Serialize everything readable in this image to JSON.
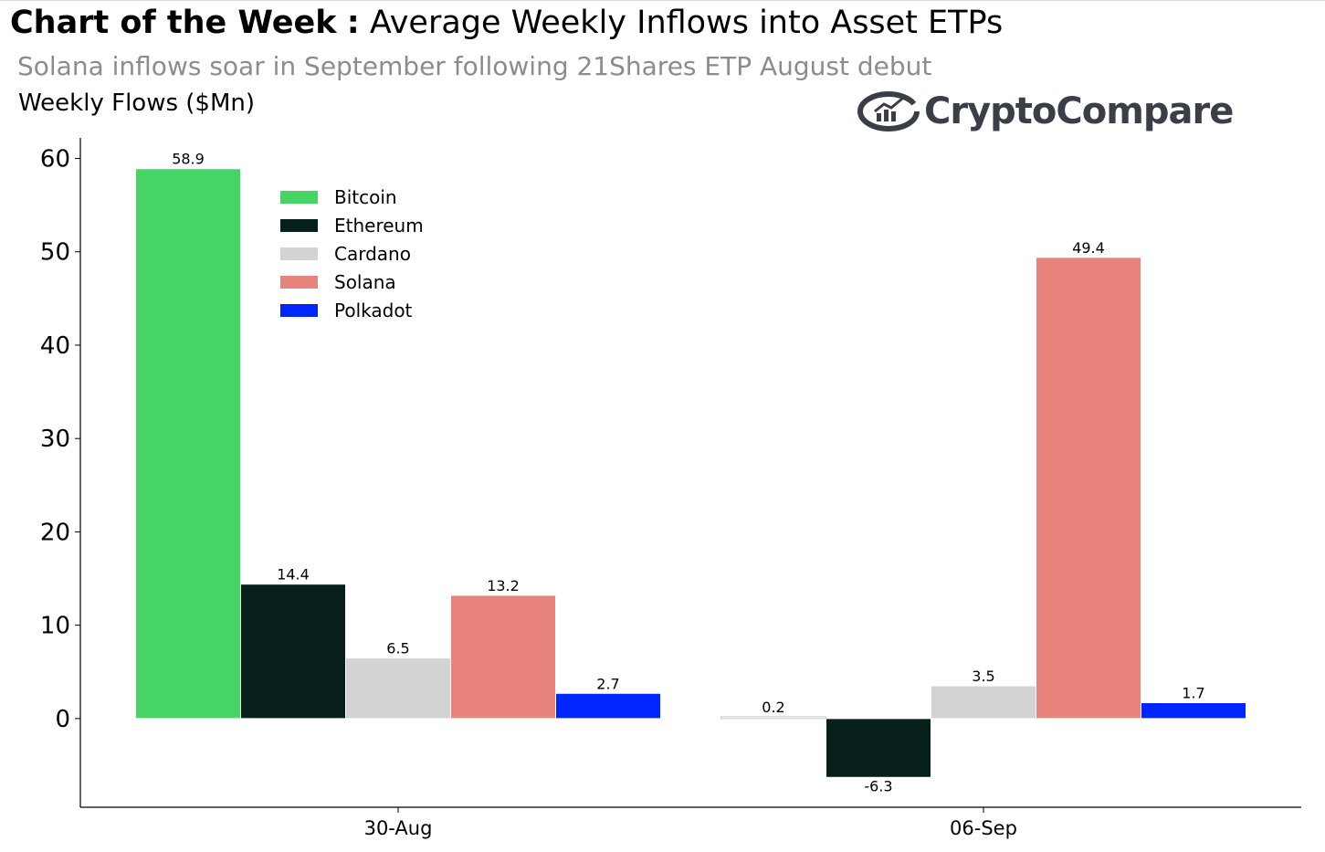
{
  "header": {
    "title_bold": "Chart of the Week",
    "title_sep": ":",
    "title_rest": "Average Weekly Inflows into Asset ETPs",
    "subtitle": "Solana inflows soar in September following 21Shares ETP August debut",
    "logo_text": "CryptoCompare"
  },
  "chart_data": {
    "type": "bar",
    "title": "Average Weekly Inflows into Asset ETPs",
    "xlabel": "",
    "ylabel": "Weekly Flows ($Mn)",
    "categories": [
      "30-Aug",
      "06-Sep"
    ],
    "series": [
      {
        "name": "Bitcoin",
        "color": "#46d464",
        "values": [
          58.9,
          null
        ],
        "labels": [
          "58.9",
          ""
        ]
      },
      {
        "name": "Ethereum",
        "color": "#061f1a",
        "values": [
          14.4,
          -6.3
        ],
        "labels": [
          "14.4",
          "-6.3"
        ]
      },
      {
        "name": "Cardano",
        "color": "#d3d3d3",
        "values": [
          6.5,
          3.5
        ],
        "labels": [
          "6.5",
          "3.5"
        ]
      },
      {
        "name": "Solana",
        "color": "#e8827c",
        "values": [
          13.2,
          49.4
        ],
        "labels": [
          "13.2",
          "49.4"
        ]
      },
      {
        "name": "Polkadot",
        "color": "#0026ff",
        "values": [
          2.7,
          1.7
        ],
        "labels": [
          "2.7",
          "1.7"
        ]
      }
    ],
    "extra_labels": [
      {
        "category": "06-Sep",
        "series": "Bitcoin",
        "value": 0.2,
        "label": "0.2"
      }
    ],
    "yticks": [
      0,
      10,
      20,
      30,
      40,
      50,
      60
    ],
    "ytick_labels": [
      "0",
      "10",
      "20",
      "30",
      "40",
      "50",
      "60"
    ],
    "ylim": [
      -9.5,
      62.2
    ],
    "grid": false,
    "legend": "top-left"
  }
}
